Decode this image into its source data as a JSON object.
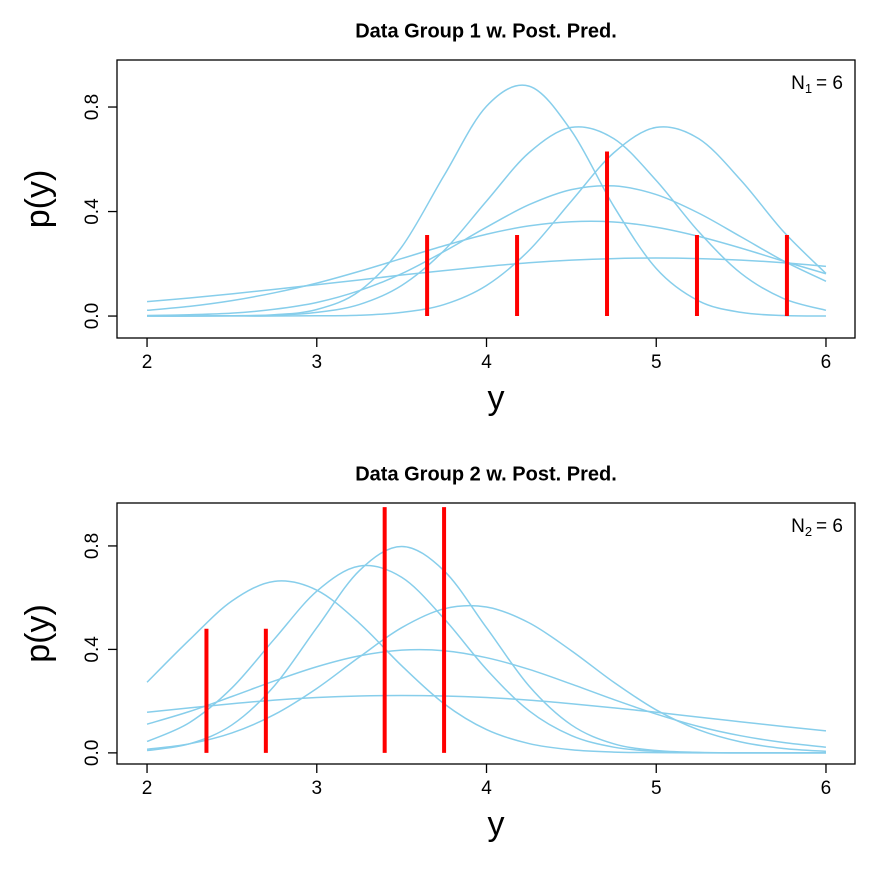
{
  "chart_data": [
    {
      "type": "line",
      "title": "Data Group 1 w. Post. Pred.",
      "xlabel": "y",
      "ylabel": "p(y)",
      "annotation": {
        "main": "N",
        "subscript": "1",
        "rest": "= 6"
      },
      "x": [
        2,
        2.25,
        2.5,
        2.75,
        3,
        3.25,
        3.5,
        3.75,
        4,
        4.25,
        4.5,
        4.75,
        5,
        5.25,
        5.5,
        5.75,
        6
      ],
      "series": [
        {
          "color": "#87ceeb",
          "values": [
            0,
            0,
            0.001,
            0.005,
            0.025,
            0.095,
            0.264,
            0.538,
            0.803,
            0.88,
            0.709,
            0.42,
            0.182,
            0.058,
            0.014,
            0.002,
            0
          ]
        },
        {
          "color": "#87ceeb",
          "values": [
            0,
            0,
            0.001,
            0.003,
            0.014,
            0.044,
            0.117,
            0.251,
            0.44,
            0.625,
            0.722,
            0.679,
            0.519,
            0.323,
            0.163,
            0.067,
            0.022
          ]
        },
        {
          "color": "#87ceeb",
          "values": [
            0,
            0,
            0,
            0,
            0.001,
            0.003,
            0.014,
            0.044,
            0.117,
            0.251,
            0.44,
            0.625,
            0.722,
            0.679,
            0.519,
            0.323,
            0.163
          ]
        },
        {
          "color": "#87ceeb",
          "values": [
            0.022,
            0.037,
            0.059,
            0.089,
            0.126,
            0.171,
            0.22,
            0.269,
            0.313,
            0.345,
            0.361,
            0.36,
            0.34,
            0.305,
            0.26,
            0.21,
            0.162
          ]
        },
        {
          "color": "#87ceeb",
          "values": [
            0.055,
            0.069,
            0.085,
            0.102,
            0.12,
            0.138,
            0.157,
            0.174,
            0.19,
            0.204,
            0.214,
            0.22,
            0.222,
            0.22,
            0.214,
            0.204,
            0.19
          ]
        },
        {
          "color": "#87ceeb",
          "values": [
            0.002,
            0.005,
            0.011,
            0.026,
            0.052,
            0.097,
            0.162,
            0.247,
            0.34,
            0.426,
            0.484,
            0.498,
            0.465,
            0.394,
            0.303,
            0.211,
            0.133
          ]
        }
      ],
      "observed": {
        "color": "#ff0000",
        "x": [
          3.65,
          4.18,
          4.71,
          5.24,
          5.77
        ],
        "values": [
          0.31,
          0.31,
          0.63,
          0.31,
          0.31
        ]
      },
      "xlim": [
        1.823,
        6.171
      ],
      "ylim": [
        -0.084,
        0.98
      ],
      "xticks": [
        2,
        3,
        4,
        5,
        6
      ],
      "yticks": [
        {
          "value": 0,
          "label": "0.0"
        },
        0.4,
        0.8
      ],
      "grid": false
    },
    {
      "type": "line",
      "title": "Data Group 2 w. Post. Pred.",
      "xlabel": "y",
      "ylabel": "p(y)",
      "annotation": {
        "main": "N",
        "subscript": "2",
        "rest": "= 6"
      },
      "x": [
        2,
        2.25,
        2.5,
        2.75,
        3,
        3.25,
        3.5,
        3.75,
        4,
        4.25,
        4.5,
        4.75,
        5,
        5.25,
        5.5,
        5.75,
        6
      ],
      "series": [
        {
          "color": "#87ceeb",
          "values": [
            0.009,
            0.035,
            0.108,
            0.259,
            0.484,
            0.704,
            0.798,
            0.704,
            0.484,
            0.259,
            0.108,
            0.035,
            0.009,
            0.002,
            0,
            0,
            0
          ]
        },
        {
          "color": "#87ceeb",
          "values": [
            0.273,
            0.437,
            0.587,
            0.663,
            0.629,
            0.502,
            0.337,
            0.19,
            0.09,
            0.036,
            0.012,
            0.003,
            0.001,
            0,
            0,
            0,
            0
          ]
        },
        {
          "color": "#87ceeb",
          "values": [
            0.044,
            0.117,
            0.251,
            0.44,
            0.625,
            0.722,
            0.679,
            0.519,
            0.323,
            0.163,
            0.067,
            0.022,
            0.006,
            0.001,
            0,
            0,
            0
          ]
        },
        {
          "color": "#87ceeb",
          "values": [
            0.111,
            0.16,
            0.218,
            0.278,
            0.333,
            0.375,
            0.397,
            0.395,
            0.368,
            0.323,
            0.266,
            0.206,
            0.15,
            0.102,
            0.066,
            0.04,
            0.022
          ]
        },
        {
          "color": "#87ceeb",
          "values": [
            0.157,
            0.174,
            0.19,
            0.204,
            0.214,
            0.22,
            0.222,
            0.22,
            0.214,
            0.204,
            0.19,
            0.174,
            0.157,
            0.138,
            0.12,
            0.102,
            0.085
          ]
        },
        {
          "color": "#87ceeb",
          "values": [
            0.014,
            0.035,
            0.077,
            0.148,
            0.249,
            0.37,
            0.484,
            0.557,
            0.564,
            0.503,
            0.395,
            0.273,
            0.166,
            0.089,
            0.042,
            0.017,
            0.006
          ]
        }
      ],
      "observed": {
        "color": "#ff0000",
        "x": [
          2.35,
          2.7,
          3.4,
          3.75
        ],
        "values": [
          0.48,
          0.48,
          0.95,
          0.95
        ]
      },
      "xlim": [
        1.823,
        6.171
      ],
      "ylim": [
        -0.043,
        0.966
      ],
      "xticks": [
        2,
        3,
        4,
        5,
        6
      ],
      "yticks": [
        {
          "value": 0,
          "label": "0.0"
        },
        0.4,
        0.8
      ],
      "grid": false
    }
  ]
}
